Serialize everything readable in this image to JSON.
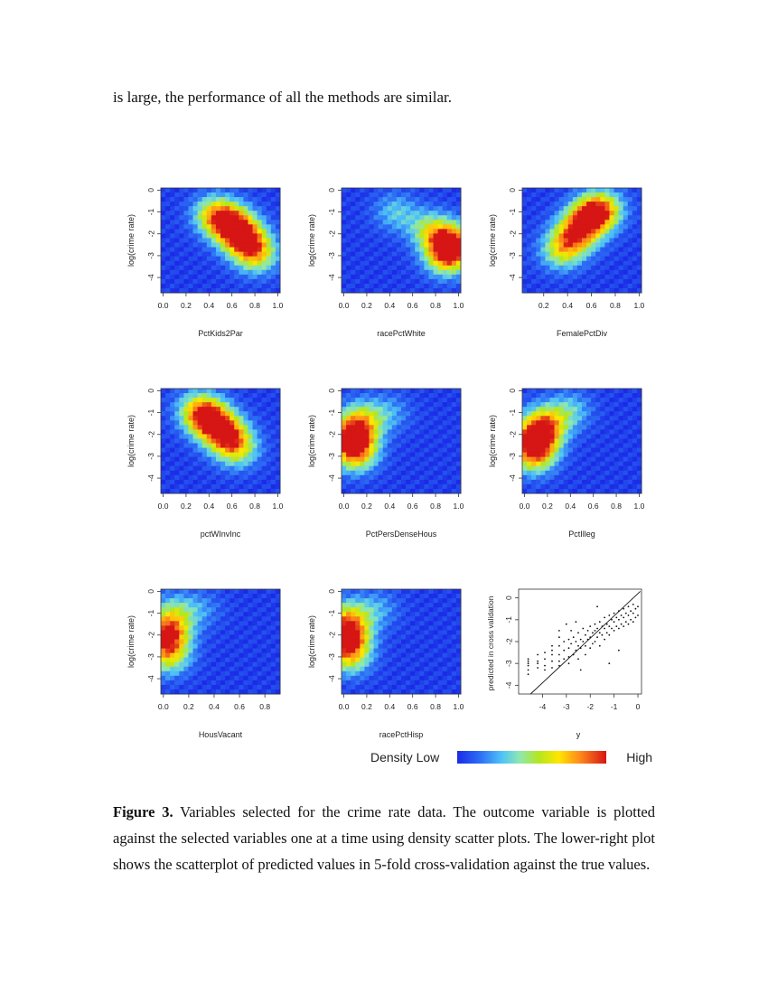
{
  "top_text": "is large, the performance of all the methods are similar.",
  "density_panels": [
    {
      "xlabel": "PctKids2Par",
      "ylabel": "log(crime rate)",
      "xticks": [
        "0.0",
        "0.2",
        "0.4",
        "0.6",
        "0.8",
        "1.0"
      ],
      "yticks": [
        "0",
        "-1",
        "-2",
        "-3",
        "-4"
      ],
      "xlim": [
        -0.02,
        1.02
      ],
      "ylim": [
        -4.7,
        0.1
      ]
    },
    {
      "xlabel": "racePctWhite",
      "ylabel": "log(crime rate)",
      "xticks": [
        "0.0",
        "0.2",
        "0.4",
        "0.6",
        "0.8",
        "1.0"
      ],
      "yticks": [
        "0",
        "-1",
        "-2",
        "-3",
        "-4"
      ],
      "xlim": [
        -0.02,
        1.02
      ],
      "ylim": [
        -4.7,
        0.1
      ]
    },
    {
      "xlabel": "FemalePctDiv",
      "ylabel": "log(crime rate)",
      "xticks": [
        "0.2",
        "0.4",
        "0.6",
        "0.8",
        "1.0"
      ],
      "yticks": [
        "0",
        "-1",
        "-2",
        "-3",
        "-4"
      ],
      "xlim": [
        0.02,
        1.02
      ],
      "ylim": [
        -4.7,
        0.1
      ]
    },
    {
      "xlabel": "pctWInvInc",
      "ylabel": "log(crime rate)",
      "xticks": [
        "0.0",
        "0.2",
        "0.4",
        "0.6",
        "0.8",
        "1.0"
      ],
      "yticks": [
        "0",
        "-1",
        "-2",
        "-3",
        "-4"
      ],
      "xlim": [
        -0.02,
        1.02
      ],
      "ylim": [
        -4.7,
        0.1
      ]
    },
    {
      "xlabel": "PctPersDenseHous",
      "ylabel": "log(crime rate)",
      "xticks": [
        "0.0",
        "0.2",
        "0.4",
        "0.6",
        "0.8",
        "1.0"
      ],
      "yticks": [
        "0",
        "-1",
        "-2",
        "-3",
        "-4"
      ],
      "xlim": [
        -0.02,
        1.02
      ],
      "ylim": [
        -4.7,
        0.1
      ]
    },
    {
      "xlabel": "PctIlleg",
      "ylabel": "log(crime rate)",
      "xticks": [
        "0.0",
        "0.2",
        "0.4",
        "0.6",
        "0.8",
        "1.0"
      ],
      "yticks": [
        "0",
        "-1",
        "-2",
        "-3",
        "-4"
      ],
      "xlim": [
        -0.02,
        1.02
      ],
      "ylim": [
        -4.7,
        0.1
      ]
    },
    {
      "xlabel": "HousVacant",
      "ylabel": "log(crime rate)",
      "xticks": [
        "0.0",
        "0.2",
        "0.4",
        "0.6",
        "0.8"
      ],
      "yticks": [
        "0",
        "-1",
        "-2",
        "-3",
        "-4"
      ],
      "xlim": [
        -0.02,
        0.92
      ],
      "ylim": [
        -4.7,
        0.1
      ]
    },
    {
      "xlabel": "racePctHisp",
      "ylabel": "log(crime rate)",
      "xticks": [
        "0.0",
        "0.2",
        "0.4",
        "0.6",
        "0.8",
        "1.0"
      ],
      "yticks": [
        "0",
        "-1",
        "-2",
        "-3",
        "-4"
      ],
      "xlim": [
        -0.02,
        1.02
      ],
      "ylim": [
        -4.7,
        0.1
      ]
    }
  ],
  "chart_data": [
    {
      "type": "heatmap",
      "xlabel": "PctKids2Par",
      "ylabel": "log(crime rate)",
      "xlim": [
        -0.02,
        1.02
      ],
      "ylim": [
        -4.7,
        0.1
      ],
      "density_peaks": [
        {
          "x": 0.6,
          "y": -1.6,
          "w": 1.0
        },
        {
          "x": 0.72,
          "y": -2.3,
          "w": 0.9
        },
        {
          "x": 0.45,
          "y": -1.1,
          "w": 0.7
        },
        {
          "x": 0.82,
          "y": -3.0,
          "w": 0.6
        }
      ]
    },
    {
      "type": "heatmap",
      "xlabel": "racePctWhite",
      "ylabel": "log(crime rate)",
      "xlim": [
        -0.02,
        1.02
      ],
      "ylim": [
        -4.7,
        0.1
      ],
      "density_peaks": [
        {
          "x": 0.93,
          "y": -2.4,
          "w": 1.0
        },
        {
          "x": 0.9,
          "y": -3.1,
          "w": 0.75
        },
        {
          "x": 0.75,
          "y": -1.8,
          "w": 0.5
        },
        {
          "x": 0.45,
          "y": -1.0,
          "w": 0.35
        }
      ]
    },
    {
      "type": "heatmap",
      "xlabel": "FemalePctDiv",
      "ylabel": "log(crime rate)",
      "xlim": [
        0.02,
        1.02
      ],
      "ylim": [
        -4.7,
        0.1
      ],
      "density_peaks": [
        {
          "x": 0.6,
          "y": -1.2,
          "w": 1.0
        },
        {
          "x": 0.47,
          "y": -2.0,
          "w": 0.85
        },
        {
          "x": 0.35,
          "y": -2.8,
          "w": 0.6
        },
        {
          "x": 0.7,
          "y": -0.8,
          "w": 0.55
        }
      ]
    },
    {
      "type": "heatmap",
      "xlabel": "pctWInvInc",
      "ylabel": "log(crime rate)",
      "xlim": [
        -0.02,
        1.02
      ],
      "ylim": [
        -4.7,
        0.1
      ],
      "density_peaks": [
        {
          "x": 0.4,
          "y": -1.3,
          "w": 1.0
        },
        {
          "x": 0.55,
          "y": -2.0,
          "w": 0.9
        },
        {
          "x": 0.65,
          "y": -2.7,
          "w": 0.55
        },
        {
          "x": 0.3,
          "y": -0.8,
          "w": 0.5
        }
      ]
    },
    {
      "type": "heatmap",
      "xlabel": "PctPersDenseHous",
      "ylabel": "log(crime rate)",
      "xlim": [
        -0.02,
        1.02
      ],
      "ylim": [
        -4.7,
        0.1
      ],
      "density_peaks": [
        {
          "x": 0.08,
          "y": -2.1,
          "w": 1.0
        },
        {
          "x": 0.1,
          "y": -2.9,
          "w": 0.75
        },
        {
          "x": 0.15,
          "y": -1.3,
          "w": 0.55
        },
        {
          "x": 0.4,
          "y": -1.0,
          "w": 0.25
        }
      ]
    },
    {
      "type": "heatmap",
      "xlabel": "PctIlleg",
      "ylabel": "log(crime rate)",
      "xlim": [
        -0.02,
        1.02
      ],
      "ylim": [
        -4.7,
        0.1
      ],
      "density_peaks": [
        {
          "x": 0.1,
          "y": -2.2,
          "w": 1.0
        },
        {
          "x": 0.18,
          "y": -1.5,
          "w": 0.7
        },
        {
          "x": 0.08,
          "y": -3.0,
          "w": 0.7
        },
        {
          "x": 0.4,
          "y": -0.9,
          "w": 0.35
        }
      ]
    },
    {
      "type": "heatmap",
      "xlabel": "HousVacant",
      "ylabel": "log(crime rate)",
      "xlim": [
        -0.02,
        0.92
      ],
      "ylim": [
        -4.7,
        0.1
      ],
      "density_peaks": [
        {
          "x": 0.03,
          "y": -2.0,
          "w": 1.0
        },
        {
          "x": 0.04,
          "y": -3.0,
          "w": 0.6
        },
        {
          "x": 0.08,
          "y": -1.0,
          "w": 0.45
        },
        {
          "x": 0.3,
          "y": -0.8,
          "w": 0.2
        }
      ]
    },
    {
      "type": "heatmap",
      "xlabel": "racePctHisp",
      "ylabel": "log(crime rate)",
      "xlim": [
        -0.02,
        1.02
      ],
      "ylim": [
        -4.7,
        0.1
      ],
      "density_peaks": [
        {
          "x": 0.03,
          "y": -2.1,
          "w": 1.0
        },
        {
          "x": 0.04,
          "y": -1.2,
          "w": 0.6
        },
        {
          "x": 0.05,
          "y": -3.0,
          "w": 0.6
        },
        {
          "x": 0.3,
          "y": -0.8,
          "w": 0.25
        }
      ]
    },
    {
      "type": "scatter",
      "xlabel": "y",
      "ylabel": "predicted in cross validation",
      "xticks": [
        "-4",
        "-3",
        "-2",
        "-1",
        "0"
      ],
      "yticks": [
        "0",
        "-1",
        "-2",
        "-3",
        "-4"
      ],
      "xlim": [
        -5.0,
        0.15
      ],
      "ylim": [
        -4.4,
        0.4
      ],
      "reference_line": {
        "x": [
          -4.5,
          0.1
        ],
        "y": [
          -4.4,
          0.3
        ]
      },
      "points": [
        [
          -4.6,
          -2.9
        ],
        [
          -4.6,
          -3.1
        ],
        [
          -4.6,
          -3.3
        ],
        [
          -4.6,
          -3.5
        ],
        [
          -4.6,
          -3.0
        ],
        [
          -4.6,
          -2.8
        ],
        [
          -4.2,
          -2.6
        ],
        [
          -4.2,
          -3.0
        ],
        [
          -4.2,
          -3.2
        ],
        [
          -4.2,
          -2.9
        ],
        [
          -3.9,
          -2.5
        ],
        [
          -3.9,
          -2.8
        ],
        [
          -3.9,
          -3.1
        ],
        [
          -3.9,
          -3.3
        ],
        [
          -3.6,
          -2.2
        ],
        [
          -3.6,
          -2.6
        ],
        [
          -3.6,
          -2.9
        ],
        [
          -3.6,
          -3.2
        ],
        [
          -3.6,
          -2.4
        ],
        [
          -3.3,
          -1.8
        ],
        [
          -3.3,
          -2.2
        ],
        [
          -3.3,
          -2.6
        ],
        [
          -3.3,
          -2.9
        ],
        [
          -3.3,
          -3.1
        ],
        [
          -3.3,
          -1.5
        ],
        [
          -3.1,
          -2.0
        ],
        [
          -3.1,
          -2.4
        ],
        [
          -3.1,
          -2.8
        ],
        [
          -3.0,
          -1.2
        ],
        [
          -2.9,
          -1.9
        ],
        [
          -2.9,
          -2.3
        ],
        [
          -2.9,
          -2.7
        ],
        [
          -2.9,
          -3.0
        ],
        [
          -2.8,
          -1.5
        ],
        [
          -2.8,
          -2.1
        ],
        [
          -2.7,
          -2.6
        ],
        [
          -2.7,
          -1.8
        ],
        [
          -2.6,
          -2.0
        ],
        [
          -2.6,
          -2.4
        ],
        [
          -2.5,
          -1.6
        ],
        [
          -2.5,
          -2.2
        ],
        [
          -2.5,
          -2.8
        ],
        [
          -2.4,
          -1.9
        ],
        [
          -2.4,
          -2.3
        ],
        [
          -2.3,
          -1.4
        ],
        [
          -2.3,
          -2.0
        ],
        [
          -2.2,
          -1.7
        ],
        [
          -2.2,
          -2.2
        ],
        [
          -2.2,
          -2.6
        ],
        [
          -2.1,
          -1.5
        ],
        [
          -2.1,
          -1.9
        ],
        [
          -2.0,
          -1.3
        ],
        [
          -2.0,
          -1.8
        ],
        [
          -2.0,
          -2.3
        ],
        [
          -1.9,
          -1.6
        ],
        [
          -1.9,
          -2.1
        ],
        [
          -1.8,
          -1.2
        ],
        [
          -1.8,
          -1.5
        ],
        [
          -1.8,
          -2.0
        ],
        [
          -1.7,
          -1.4
        ],
        [
          -1.7,
          -1.8
        ],
        [
          -1.6,
          -1.1
        ],
        [
          -1.6,
          -1.6
        ],
        [
          -1.6,
          -2.2
        ],
        [
          -1.5,
          -1.3
        ],
        [
          -1.5,
          -1.7
        ],
        [
          -1.4,
          -0.9
        ],
        [
          -1.4,
          -1.4
        ],
        [
          -1.4,
          -1.9
        ],
        [
          -1.3,
          -1.2
        ],
        [
          -1.3,
          -1.6
        ],
        [
          -1.2,
          -0.8
        ],
        [
          -1.2,
          -1.3
        ],
        [
          -1.2,
          -1.7
        ],
        [
          -1.1,
          -1.0
        ],
        [
          -1.1,
          -1.4
        ],
        [
          -1.0,
          -0.7
        ],
        [
          -1.0,
          -1.1
        ],
        [
          -1.0,
          -1.5
        ],
        [
          -0.9,
          -0.9
        ],
        [
          -0.9,
          -1.3
        ],
        [
          -0.8,
          -0.6
        ],
        [
          -0.8,
          -1.0
        ],
        [
          -0.8,
          -1.4
        ],
        [
          -0.7,
          -0.8
        ],
        [
          -0.7,
          -1.2
        ],
        [
          -0.6,
          -0.5
        ],
        [
          -0.6,
          -0.9
        ],
        [
          -0.6,
          -1.3
        ],
        [
          -0.5,
          -0.7
        ],
        [
          -0.5,
          -1.1
        ],
        [
          -0.4,
          -0.4
        ],
        [
          -0.4,
          -0.8
        ],
        [
          -0.4,
          -1.2
        ],
        [
          -0.3,
          -0.6
        ],
        [
          -0.3,
          -1.0
        ],
        [
          -0.2,
          -0.3
        ],
        [
          -0.2,
          -0.7
        ],
        [
          -0.2,
          -1.1
        ],
        [
          -0.1,
          -0.5
        ],
        [
          -0.1,
          -0.9
        ],
        [
          0.0,
          -0.4
        ],
        [
          0.0,
          -0.8
        ],
        [
          -1.2,
          -3.0
        ],
        [
          -0.8,
          -2.4
        ],
        [
          -2.4,
          -3.3
        ],
        [
          -1.7,
          -0.4
        ],
        [
          -2.6,
          -1.1
        ]
      ]
    }
  ],
  "legend": {
    "low_label": "Density Low",
    "high_label": "High"
  },
  "caption": {
    "label": "Figure 3.",
    "text": "Variables selected for the crime rate data. The outcome variable is plotted against the selected variables one at a time using density scatter plots. The lower-right plot shows the scatterplot of predicted values in 5-fold cross-validation against the true values."
  }
}
